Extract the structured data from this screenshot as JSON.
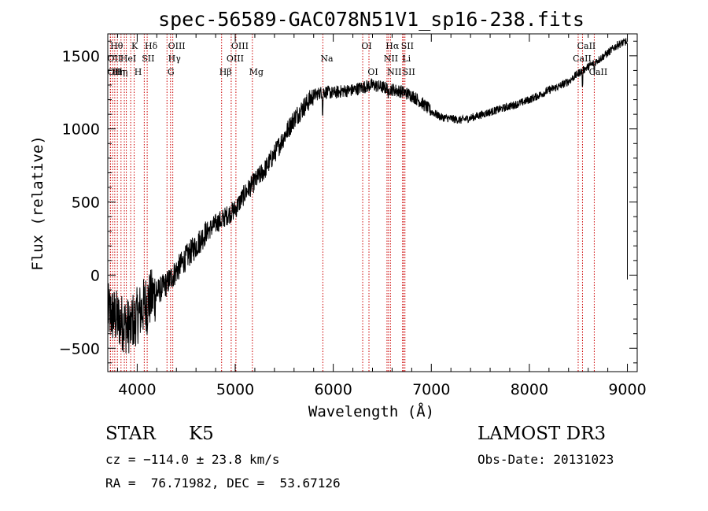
{
  "chart_data": {
    "type": "line",
    "title": "spec-56589-GAC078N51V1_sp16-238.fits",
    "xlabel": "Wavelength (Å)",
    "ylabel": "Flux (relative)",
    "xlim": [
      3700,
      9100
    ],
    "ylim": [
      -660,
      1650
    ],
    "x_ticks": [
      4000,
      5000,
      6000,
      7000,
      8000,
      9000
    ],
    "y_ticks": [
      -500,
      0,
      500,
      1000,
      1500
    ],
    "x_ticks_labels": [
      "4000",
      "5000",
      "6000",
      "7000",
      "8000",
      "9000"
    ],
    "y_ticks_labels": [
      "−500",
      "0",
      "500",
      "1000",
      "1500"
    ],
    "series": [
      {
        "name": "flux",
        "x": [
          3700,
          3800,
          3900,
          4000,
          4100,
          4200,
          4300,
          4400,
          4500,
          4600,
          4700,
          4800,
          4900,
          5000,
          5100,
          5200,
          5300,
          5400,
          5500,
          5600,
          5700,
          5800,
          5900,
          6000,
          6100,
          6200,
          6300,
          6400,
          6500,
          6600,
          6700,
          6800,
          6900,
          7000,
          7100,
          7200,
          7300,
          7400,
          7500,
          7600,
          7700,
          7800,
          7900,
          8000,
          8100,
          8200,
          8300,
          8400,
          8500,
          8600,
          8700,
          8800,
          8900,
          9000
        ],
        "y": [
          -250,
          -300,
          -350,
          -280,
          -180,
          -120,
          -60,
          30,
          120,
          200,
          290,
          350,
          400,
          450,
          560,
          640,
          720,
          830,
          950,
          1070,
          1150,
          1230,
          1255,
          1245,
          1260,
          1265,
          1285,
          1300,
          1285,
          1270,
          1255,
          1230,
          1180,
          1120,
          1080,
          1070,
          1060,
          1075,
          1095,
          1115,
          1135,
          1155,
          1175,
          1200,
          1230,
          1265,
          1290,
          1325,
          1380,
          1425,
          1470,
          1520,
          1575,
          1600
        ]
      }
    ],
    "absorption_features": [
      {
        "x": 3934,
        "depth": 150
      },
      {
        "x": 3968,
        "depth": 140
      },
      {
        "x": 4101,
        "depth": 80
      },
      {
        "x": 4861,
        "depth": 60
      },
      {
        "x": 5892,
        "depth": 180
      },
      {
        "x": 6563,
        "depth": 90
      },
      {
        "x": 8542,
        "depth": 140
      },
      {
        "x": 8662,
        "depth": 100
      }
    ],
    "spike": {
      "x": 9000,
      "top": 1580,
      "bottom": -30
    },
    "line_color": "#000000",
    "marker_color": "#cc0000",
    "spectral_lines": [
      {
        "x": 3727,
        "label": "OII",
        "row": 1
      },
      {
        "x": 3727,
        "label": "OII",
        "row": 2
      },
      {
        "x": 3750,
        "label": "Hθ",
        "row": 0
      },
      {
        "x": 3771,
        "label": "Hη",
        "row": 2
      },
      {
        "x": 3798,
        "label": "Hη",
        "row": 2
      },
      {
        "x": 3835,
        "label": "",
        "row": 0
      },
      {
        "x": 3869,
        "label": "HeI",
        "row": 1
      },
      {
        "x": 3889,
        "label": "",
        "row": 0
      },
      {
        "x": 3934,
        "label": "K",
        "row": 0
      },
      {
        "x": 3969,
        "label": "H",
        "row": 2
      },
      {
        "x": 4072,
        "label": "SII",
        "row": 1
      },
      {
        "x": 4102,
        "label": "Hδ",
        "row": 0
      },
      {
        "x": 4304,
        "label": "G",
        "row": 2
      },
      {
        "x": 4340,
        "label": "Hγ",
        "row": 1
      },
      {
        "x": 4363,
        "label": "OIII",
        "row": 0
      },
      {
        "x": 4861,
        "label": "Hβ",
        "row": 2
      },
      {
        "x": 4959,
        "label": "OIII",
        "row": 1
      },
      {
        "x": 5007,
        "label": "OIII",
        "row": 0
      },
      {
        "x": 5175,
        "label": "Mg",
        "row": 2
      },
      {
        "x": 5894,
        "label": "Na",
        "row": 1
      },
      {
        "x": 6300,
        "label": "OI",
        "row": 0
      },
      {
        "x": 6364,
        "label": "OI",
        "row": 2
      },
      {
        "x": 6548,
        "label": "NII",
        "row": 1
      },
      {
        "x": 6563,
        "label": "Hα",
        "row": 0
      },
      {
        "x": 6583,
        "label": "NII",
        "row": 2
      },
      {
        "x": 6707,
        "label": "Li",
        "row": 1
      },
      {
        "x": 6716,
        "label": "SII",
        "row": 0
      },
      {
        "x": 6731,
        "label": "SII",
        "row": 2
      },
      {
        "x": 8498,
        "label": "CaII",
        "row": 1
      },
      {
        "x": 8542,
        "label": "CaII",
        "row": 0
      },
      {
        "x": 8662,
        "label": "CaII",
        "row": 2
      }
    ]
  },
  "info": {
    "class_label": "STAR",
    "subclass_label": "K5",
    "survey": "LAMOST DR3",
    "cz": "cz = −114.0 ± 23.8 km/s",
    "obs_date": "Obs-Date: 20131023",
    "coords": "RA =  76.71982, DEC =  53.67126"
  }
}
